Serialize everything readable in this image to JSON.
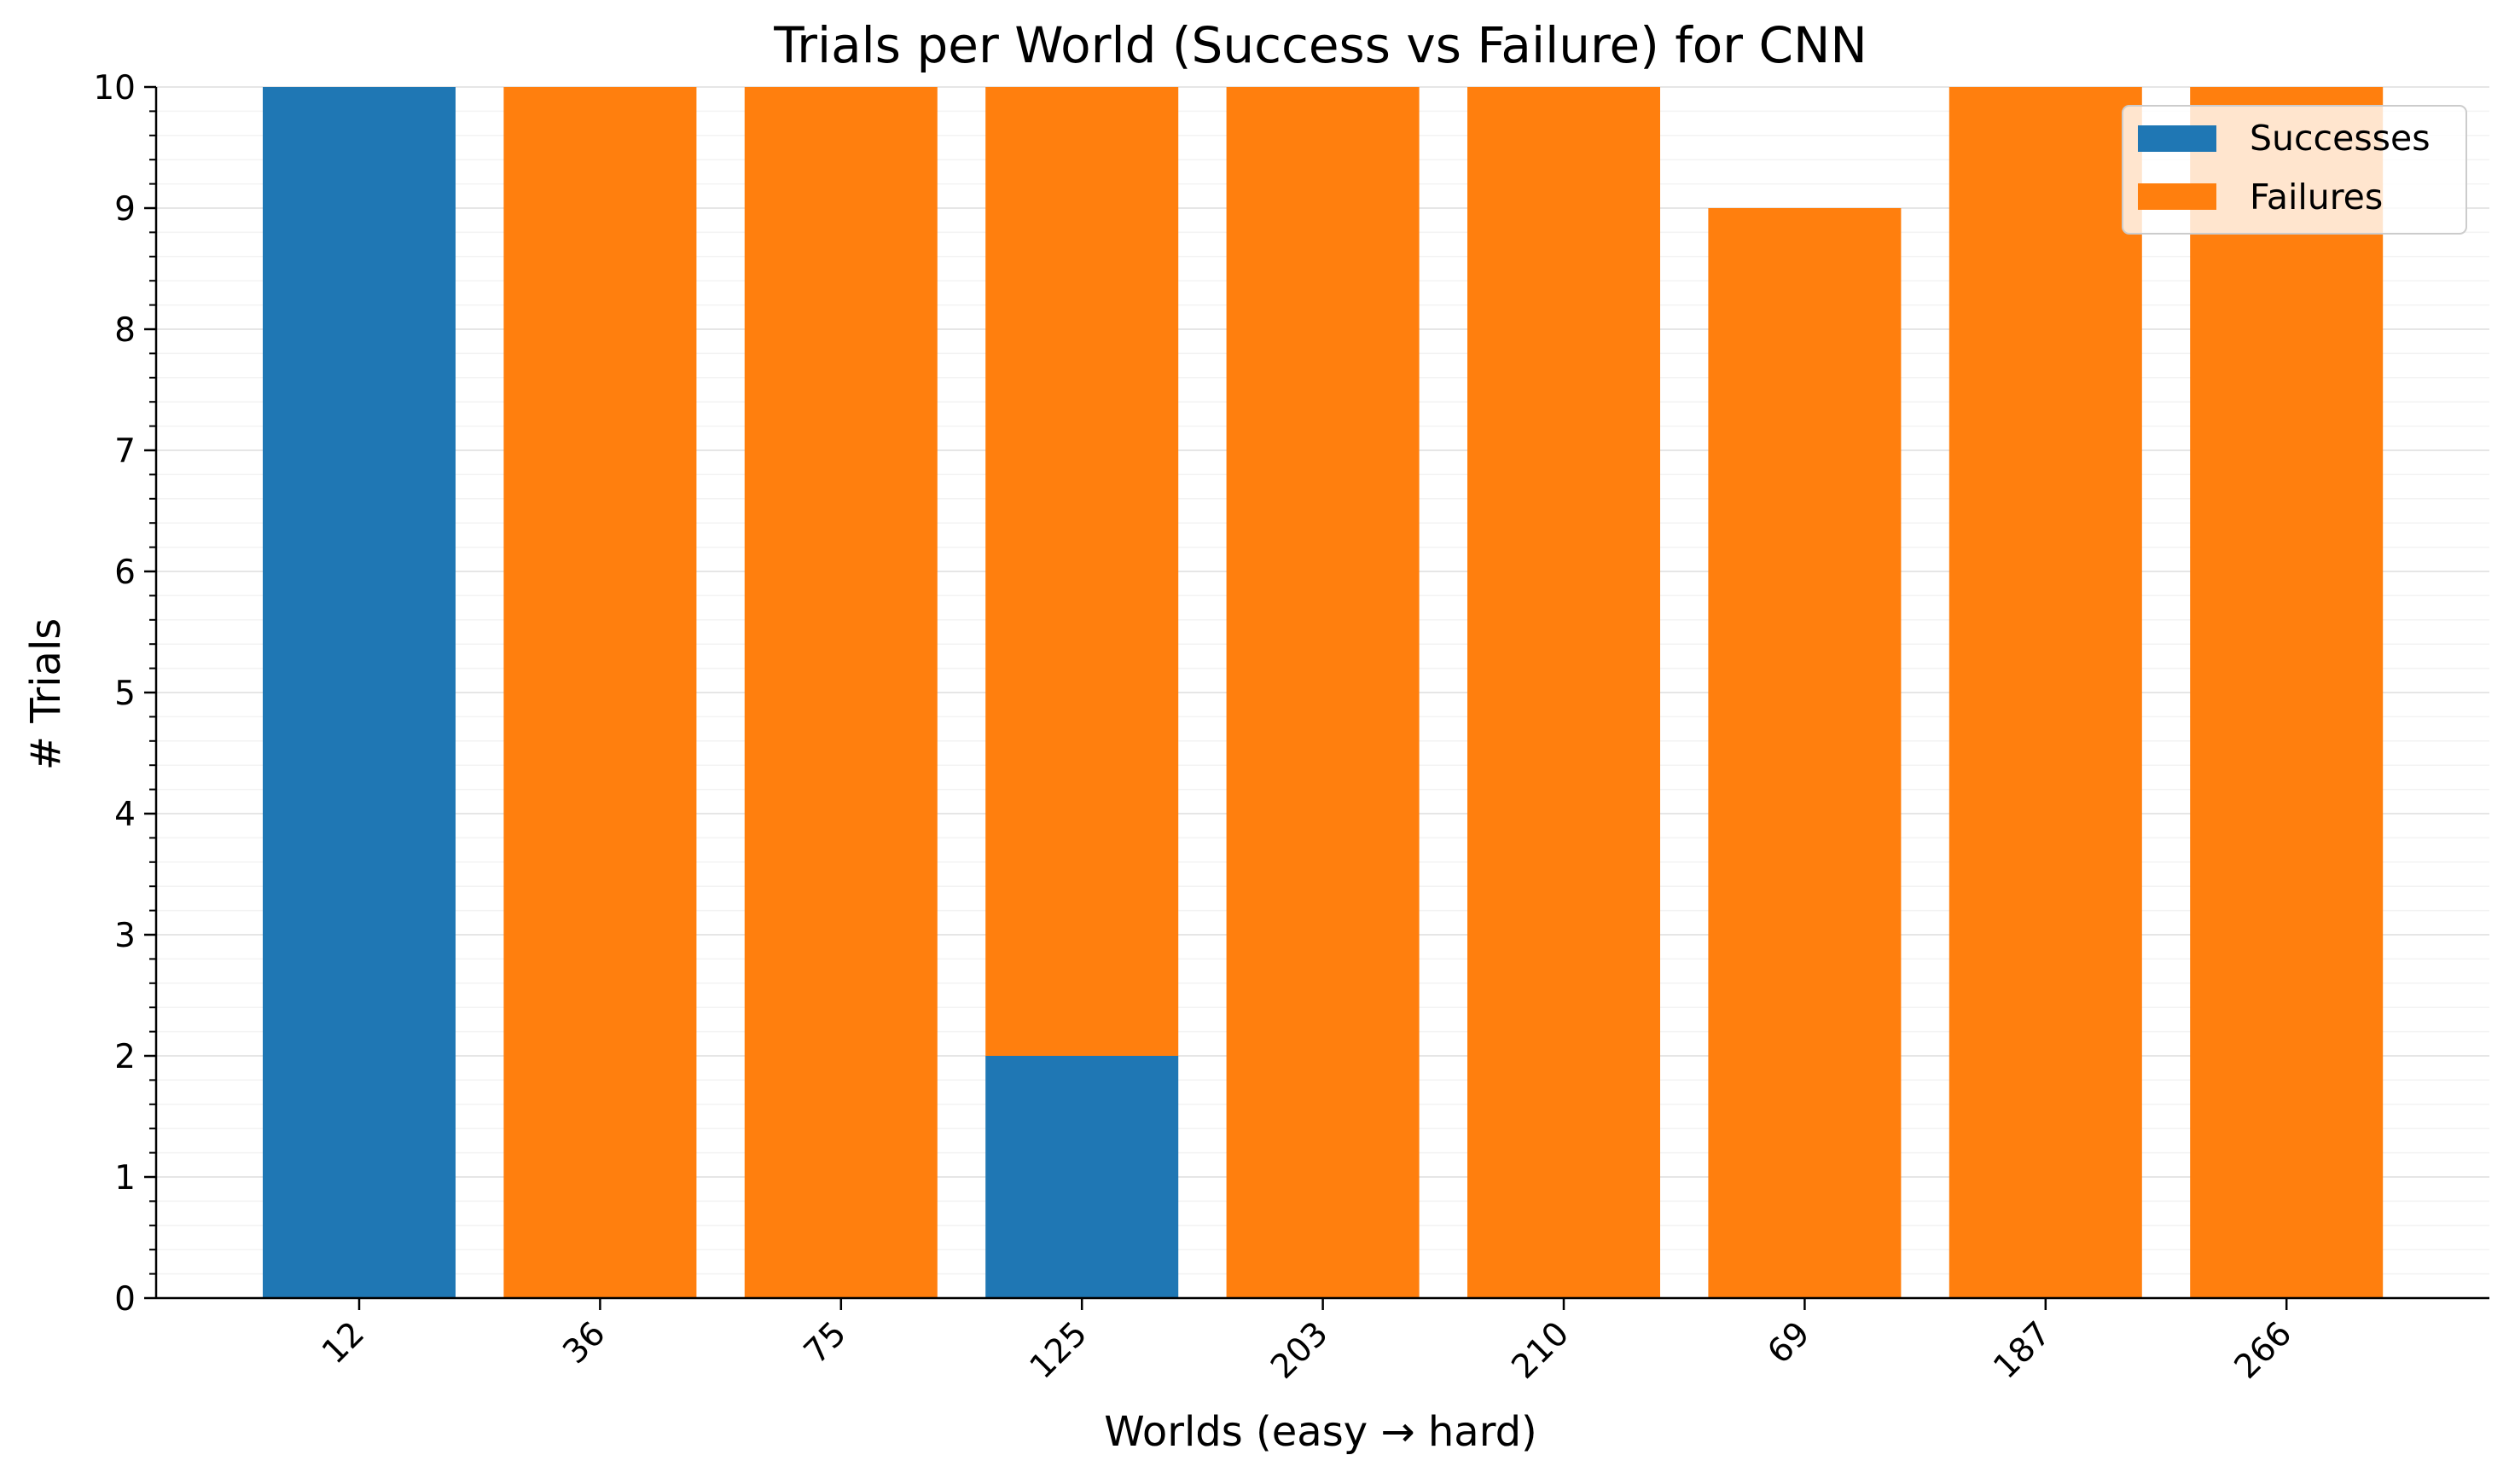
{
  "chart_data": {
    "type": "bar",
    "stacked": true,
    "title": "Trials per World (Success vs Failure) for CNN",
    "xlabel": "Worlds (easy → hard)",
    "ylabel": "# Trials",
    "ylim": [
      0,
      10
    ],
    "yticks": [
      "0",
      "1",
      "2",
      "3",
      "4",
      "5",
      "6",
      "7",
      "8",
      "9",
      "10"
    ],
    "grid": true,
    "legend_position": "top-right",
    "categories": [
      "12",
      "36",
      "75",
      "125",
      "203",
      "210",
      "69",
      "187",
      "266"
    ],
    "series": [
      {
        "name": "Successes",
        "color": "#1f77b4",
        "values": [
          10,
          0,
          0,
          2,
          0,
          0,
          0,
          0,
          0
        ]
      },
      {
        "name": "Failures",
        "color": "#ff7f0e",
        "values": [
          0,
          10,
          10,
          8,
          10,
          10,
          9,
          10,
          10
        ]
      }
    ]
  }
}
